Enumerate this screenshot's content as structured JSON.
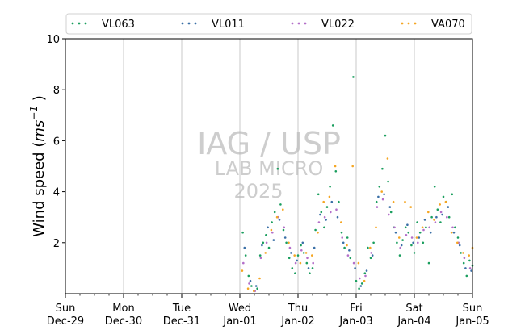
{
  "chart_data": {
    "type": "scatter",
    "ylabel_main": "Wind speed (",
    "ylabel_unit_base": "ms",
    "ylabel_unit_exp": "−1",
    "ylabel_close": " )",
    "xlabel": "",
    "ylim": [
      0,
      10
    ],
    "xlim": [
      0,
      7
    ],
    "y_ticks": [
      2,
      4,
      6,
      8,
      10
    ],
    "x_ticks": [
      {
        "pos": 0,
        "day": "Sun",
        "date": "Dec-29"
      },
      {
        "pos": 1,
        "day": "Mon",
        "date": "Dec-30"
      },
      {
        "pos": 2,
        "day": "Tue",
        "date": "Dec-31"
      },
      {
        "pos": 3,
        "day": "Wed",
        "date": "Jan-01"
      },
      {
        "pos": 4,
        "day": "Thu",
        "date": "Jan-02"
      },
      {
        "pos": 5,
        "day": "Fri",
        "date": "Jan-03"
      },
      {
        "pos": 6,
        "day": "Sat",
        "date": "Jan-04"
      },
      {
        "pos": 7,
        "day": "Sun",
        "date": "Jan-05"
      }
    ],
    "grid": "vertical",
    "legend_position": "top",
    "series": [
      {
        "name": "VL063",
        "color": "#1a9e5e",
        "points": [
          [
            3.05,
            2.4
          ],
          [
            3.1,
            1.5
          ],
          [
            3.15,
            0.7
          ],
          [
            3.2,
            0.3
          ],
          [
            3.3,
            0.2
          ],
          [
            3.35,
            1.5
          ],
          [
            3.4,
            2.0
          ],
          [
            3.45,
            2.3
          ],
          [
            3.5,
            1.8
          ],
          [
            3.55,
            2.8
          ],
          [
            3.6,
            3.2
          ],
          [
            3.65,
            4.9
          ],
          [
            3.7,
            3.5
          ],
          [
            3.75,
            2.5
          ],
          [
            3.8,
            2.0
          ],
          [
            3.85,
            1.4
          ],
          [
            3.9,
            1.0
          ],
          [
            3.95,
            0.8
          ],
          [
            4.0,
            1.5
          ],
          [
            4.05,
            1.9
          ],
          [
            4.1,
            1.6
          ],
          [
            4.15,
            1.2
          ],
          [
            4.2,
            0.8
          ],
          [
            4.25,
            1.0
          ],
          [
            4.3,
            2.5
          ],
          [
            4.35,
            3.9
          ],
          [
            4.4,
            3.2
          ],
          [
            4.45,
            2.6
          ],
          [
            4.5,
            3.4
          ],
          [
            4.55,
            4.2
          ],
          [
            4.6,
            6.6
          ],
          [
            4.65,
            4.8
          ],
          [
            4.7,
            3.6
          ],
          [
            4.75,
            2.4
          ],
          [
            4.8,
            1.8
          ],
          [
            4.85,
            2.2
          ],
          [
            4.9,
            1.4
          ],
          [
            4.95,
            8.5
          ],
          [
            5.0,
            0.5
          ],
          [
            5.05,
            0.2
          ],
          [
            5.1,
            0.4
          ],
          [
            5.15,
            0.8
          ],
          [
            5.2,
            1.8
          ],
          [
            5.25,
            1.4
          ],
          [
            5.3,
            2.0
          ],
          [
            5.35,
            3.6
          ],
          [
            5.4,
            4.2
          ],
          [
            5.45,
            4.9
          ],
          [
            5.5,
            6.2
          ],
          [
            5.55,
            4.4
          ],
          [
            5.6,
            3.2
          ],
          [
            5.65,
            2.6
          ],
          [
            5.7,
            2.0
          ],
          [
            5.75,
            1.5
          ],
          [
            5.8,
            2.1
          ],
          [
            5.85,
            2.6
          ],
          [
            5.9,
            2.4
          ],
          [
            5.95,
            1.9
          ],
          [
            6.0,
            1.6
          ],
          [
            6.05,
            2.8
          ],
          [
            6.1,
            2.4
          ],
          [
            6.15,
            2.0
          ],
          [
            6.2,
            2.6
          ],
          [
            6.25,
            1.2
          ],
          [
            6.3,
            3.0
          ],
          [
            6.35,
            4.2
          ],
          [
            6.4,
            3.3
          ],
          [
            6.45,
            2.8
          ],
          [
            6.5,
            3.8
          ],
          [
            6.55,
            3.6
          ],
          [
            6.6,
            3.0
          ],
          [
            6.65,
            3.9
          ],
          [
            6.7,
            2.6
          ],
          [
            6.75,
            2.2
          ],
          [
            6.8,
            1.6
          ],
          [
            6.85,
            1.2
          ],
          [
            6.9,
            0.7
          ],
          [
            6.95,
            1.3
          ],
          [
            7.0,
            1.1
          ]
        ]
      },
      {
        "name": "VL011",
        "color": "#3a6fa6",
        "points": [
          [
            3.08,
            1.8
          ],
          [
            3.18,
            0.5
          ],
          [
            3.28,
            0.3
          ],
          [
            3.38,
            1.9
          ],
          [
            3.48,
            2.6
          ],
          [
            3.58,
            2.1
          ],
          [
            3.68,
            2.9
          ],
          [
            3.78,
            2.2
          ],
          [
            3.88,
            1.6
          ],
          [
            3.98,
            1.3
          ],
          [
            4.08,
            2.0
          ],
          [
            4.18,
            1.0
          ],
          [
            4.28,
            1.8
          ],
          [
            4.38,
            3.1
          ],
          [
            4.48,
            2.9
          ],
          [
            4.58,
            3.6
          ],
          [
            4.68,
            3.0
          ],
          [
            4.78,
            2.0
          ],
          [
            4.88,
            1.7
          ],
          [
            4.98,
            1.0
          ],
          [
            5.08,
            0.3
          ],
          [
            5.18,
            0.9
          ],
          [
            5.28,
            1.5
          ],
          [
            5.38,
            3.8
          ],
          [
            5.48,
            3.9
          ],
          [
            5.58,
            3.4
          ],
          [
            5.68,
            2.4
          ],
          [
            5.78,
            1.9
          ],
          [
            5.88,
            2.7
          ],
          [
            5.98,
            2.0
          ],
          [
            6.08,
            2.2
          ],
          [
            6.18,
            2.9
          ],
          [
            6.28,
            2.4
          ],
          [
            6.38,
            3.0
          ],
          [
            6.48,
            3.1
          ],
          [
            6.58,
            3.4
          ],
          [
            6.68,
            2.4
          ],
          [
            6.78,
            1.9
          ],
          [
            6.88,
            1.0
          ],
          [
            6.98,
            0.9
          ]
        ]
      },
      {
        "name": "VL022",
        "color": "#b36fc9",
        "points": [
          [
            3.06,
            1.2
          ],
          [
            3.16,
            0.4
          ],
          [
            3.26,
            0.1
          ],
          [
            3.36,
            1.4
          ],
          [
            3.46,
            2.0
          ],
          [
            3.56,
            2.4
          ],
          [
            3.66,
            3.0
          ],
          [
            3.76,
            2.6
          ],
          [
            3.86,
            1.8
          ],
          [
            3.96,
            1.2
          ],
          [
            4.06,
            1.7
          ],
          [
            4.16,
            1.4
          ],
          [
            4.26,
            1.2
          ],
          [
            4.36,
            2.8
          ],
          [
            4.46,
            3.0
          ],
          [
            4.56,
            3.2
          ],
          [
            4.66,
            3.3
          ],
          [
            4.76,
            2.2
          ],
          [
            4.86,
            1.5
          ],
          [
            4.96,
            1.2
          ],
          [
            5.06,
            0.6
          ],
          [
            5.16,
            0.7
          ],
          [
            5.26,
            1.6
          ],
          [
            5.36,
            3.4
          ],
          [
            5.46,
            3.7
          ],
          [
            5.56,
            3.1
          ],
          [
            5.66,
            2.6
          ],
          [
            5.76,
            1.8
          ],
          [
            5.86,
            2.3
          ],
          [
            5.96,
            2.2
          ],
          [
            6.06,
            2.0
          ],
          [
            6.16,
            2.5
          ],
          [
            6.26,
            2.6
          ],
          [
            6.36,
            2.8
          ],
          [
            6.46,
            3.2
          ],
          [
            6.56,
            3.0
          ],
          [
            6.66,
            2.6
          ],
          [
            6.76,
            2.0
          ],
          [
            6.86,
            1.4
          ],
          [
            6.96,
            1.0
          ]
        ]
      },
      {
        "name": "VA070",
        "color": "#f5a623",
        "points": [
          [
            3.04,
            0.9
          ],
          [
            3.14,
            0.2
          ],
          [
            3.24,
            0.1
          ],
          [
            3.34,
            0.6
          ],
          [
            3.44,
            1.6
          ],
          [
            3.54,
            2.5
          ],
          [
            3.64,
            3.0
          ],
          [
            3.74,
            3.3
          ],
          [
            3.84,
            2.0
          ],
          [
            3.94,
            1.5
          ],
          [
            4.04,
            1.2
          ],
          [
            4.14,
            1.6
          ],
          [
            4.24,
            1.5
          ],
          [
            4.34,
            2.4
          ],
          [
            4.44,
            3.6
          ],
          [
            4.54,
            3.8
          ],
          [
            4.64,
            5.0
          ],
          [
            4.74,
            2.8
          ],
          [
            4.84,
            1.9
          ],
          [
            4.94,
            5.0
          ],
          [
            5.04,
            1.2
          ],
          [
            5.14,
            0.5
          ],
          [
            5.24,
            1.8
          ],
          [
            5.34,
            2.6
          ],
          [
            5.44,
            4.0
          ],
          [
            5.54,
            5.3
          ],
          [
            5.64,
            3.6
          ],
          [
            5.74,
            2.2
          ],
          [
            5.84,
            3.6
          ],
          [
            5.94,
            3.4
          ],
          [
            6.04,
            2.2
          ],
          [
            6.14,
            2.6
          ],
          [
            6.24,
            3.2
          ],
          [
            6.34,
            2.9
          ],
          [
            6.44,
            3.5
          ],
          [
            6.54,
            3.6
          ],
          [
            6.64,
            2.4
          ],
          [
            6.74,
            2.0
          ],
          [
            6.84,
            1.6
          ],
          [
            6.94,
            1.5
          ],
          [
            7.0,
            1.8
          ]
        ]
      }
    ]
  },
  "watermark": {
    "line1": "IAG / USP",
    "line2": "LAB MICRO",
    "line3": "2025"
  }
}
